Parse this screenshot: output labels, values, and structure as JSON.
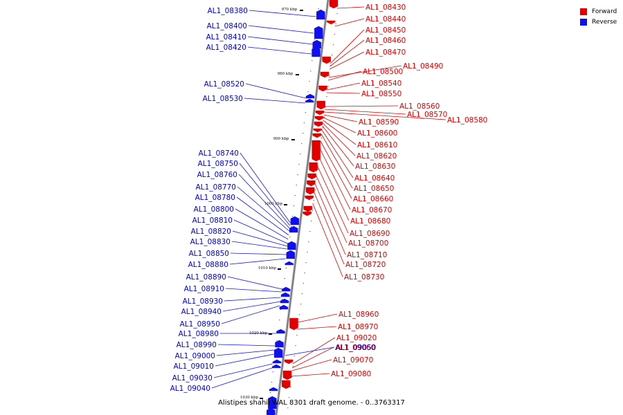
{
  "legend": [
    {
      "label": "Forward",
      "color": "#e00000"
    },
    {
      "label": "Reverse",
      "color": "#1010ee"
    }
  ],
  "caption": "Alistipes shahii WAL 8301 draft genome. - 0..3763317",
  "ticks": [
    "970 kbp",
    "980 kbp",
    "990 kbp",
    "1000 kbp",
    "1010 kbp",
    "1020 kbp",
    "1030 kbp"
  ],
  "forward_genes": [
    "AL1_08430",
    "AL1_08440",
    "AL1_08450",
    "AL1_08460",
    "AL1_08470",
    "AL1_08490",
    "AL1_08500",
    "AL1_08540",
    "AL1_08550",
    "AL1_08560",
    "AL1_08570",
    "AL1_08580",
    "AL1_08590",
    "AL1_08600",
    "AL1_08610",
    "AL1_08620",
    "AL1_08630",
    "AL1_08640",
    "AL1_08650",
    "AL1_08660",
    "AL1_08670",
    "AL1_08680",
    "AL1_08690",
    "AL1_08700",
    "AL1_08710",
    "AL1_08720",
    "AL1_08730",
    "AL1_08960",
    "AL1_08970",
    "AL1_09020",
    "AL1_09060",
    "AL1_09070",
    "AL1_09080"
  ],
  "reverse_genes": [
    "AL1_08380",
    "AL1_08400",
    "AL1_08410",
    "AL1_08420",
    "AL1_08520",
    "AL1_08530",
    "AL1_08740",
    "AL1_08750",
    "AL1_08760",
    "AL1_08770",
    "AL1_08780",
    "AL1_08800",
    "AL1_08810",
    "AL1_08820",
    "AL1_08830",
    "AL1_08850",
    "AL1_08880",
    "AL1_08890",
    "AL1_08910",
    "AL1_08930",
    "AL1_08940",
    "AL1_08950",
    "AL1_08980",
    "AL1_08990",
    "AL1_09000",
    "AL1_09010",
    "AL1_09030",
    "AL1_09040",
    "AL1_09050"
  ],
  "colors": {
    "forward": "#e00000",
    "reverse": "#1010ee",
    "backbone": "#888888"
  }
}
